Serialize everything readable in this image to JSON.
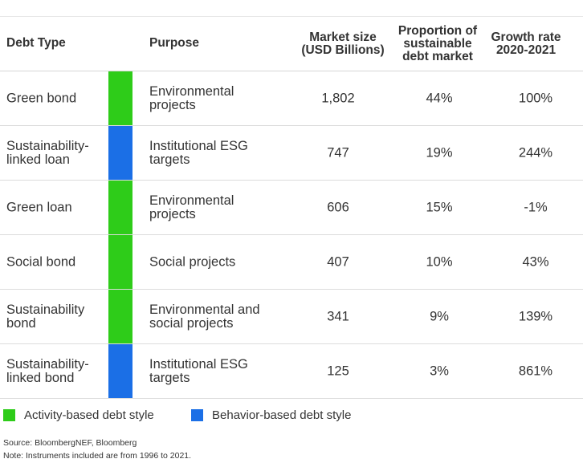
{
  "chart_data": {
    "type": "table",
    "columns": [
      "Debt Type",
      "Purpose",
      "Market size (USD Billions)",
      "Proportion of sustainable debt market",
      "Growth rate 2020-2021"
    ],
    "headers": {
      "debt_type": "Debt Type",
      "purpose": "Purpose",
      "market_line1": "Market size",
      "market_line2": "(USD Billions)",
      "prop_line1": "Proportion of",
      "prop_line2": "sustainable",
      "prop_line3": "debt market",
      "growth_line1": "Growth rate",
      "growth_line2": "2020-2021"
    },
    "rows": [
      {
        "debt_type": [
          "Green bond"
        ],
        "style": "Activity-based debt style",
        "purpose": [
          "Environmental",
          "projects"
        ],
        "market_size": "1,802",
        "proportion": "44%",
        "growth": "100%"
      },
      {
        "debt_type": [
          "Sustainability-",
          "linked loan"
        ],
        "style": "Behavior-based debt style",
        "purpose": [
          "Institutional ESG",
          "targets"
        ],
        "market_size": "747",
        "proportion": "19%",
        "growth": "244%"
      },
      {
        "debt_type": [
          "Green loan"
        ],
        "style": "Activity-based debt style",
        "purpose": [
          "Environmental",
          "projects"
        ],
        "market_size": "606",
        "proportion": "15%",
        "growth": "-1%"
      },
      {
        "debt_type": [
          "Social bond"
        ],
        "style": "Activity-based debt style",
        "purpose": [
          "Social projects"
        ],
        "market_size": "407",
        "proportion": "10%",
        "growth": "43%"
      },
      {
        "debt_type": [
          "Sustainability",
          "bond"
        ],
        "style": "Activity-based debt style",
        "purpose": [
          "Environmental and",
          "social projects"
        ],
        "market_size": "341",
        "proportion": "9%",
        "growth": "139%"
      },
      {
        "debt_type": [
          "Sustainability-",
          "linked bond"
        ],
        "style": "Behavior-based debt style",
        "purpose": [
          "Institutional ESG",
          "targets"
        ],
        "market_size": "125",
        "proportion": "3%",
        "growth": "861%"
      }
    ],
    "legend": [
      {
        "label": "Activity-based debt style",
        "color": "#2ecc19"
      },
      {
        "label": "Behavior-based debt style",
        "color": "#1b6fe6"
      }
    ],
    "legend_position": "bottom-left"
  },
  "footnotes": {
    "source": "Source: BloombergNEF, Bloomberg",
    "note": "Note: Instruments included are from 1996 to 2021."
  }
}
